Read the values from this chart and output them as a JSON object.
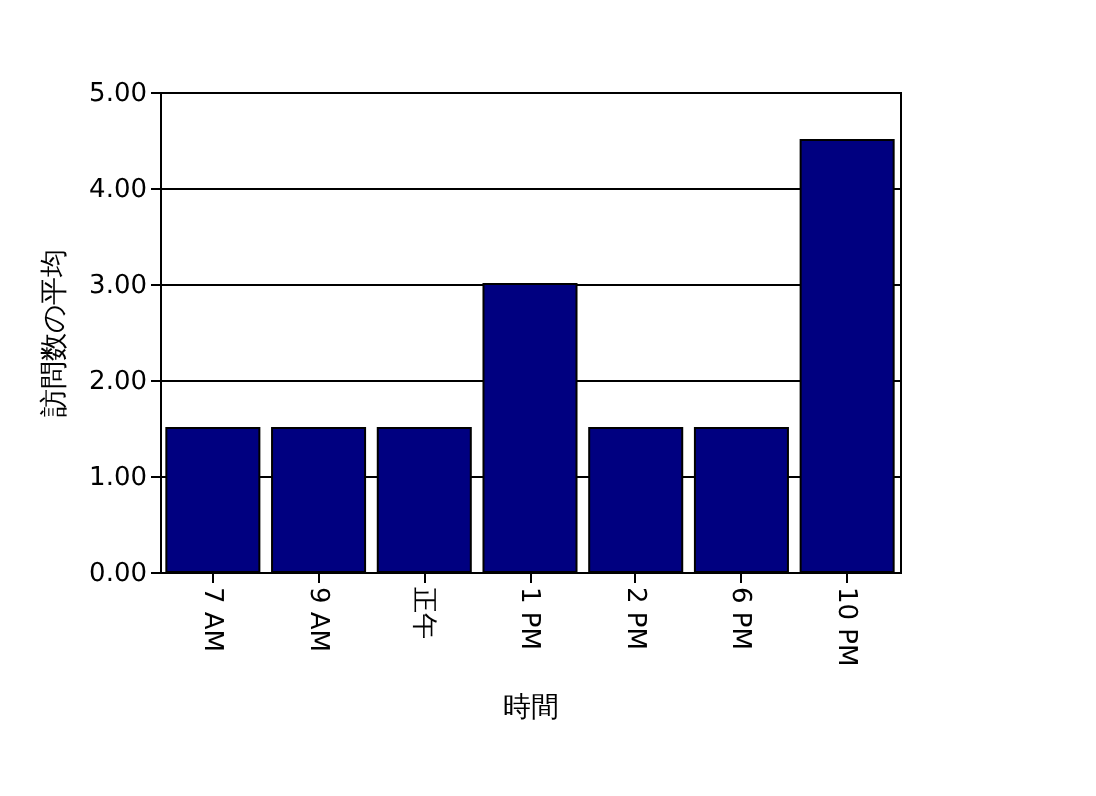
{
  "chart_data": {
    "type": "bar",
    "xlabel": "時間",
    "ylabel": "訪問数の平均",
    "categories": [
      "7 AM",
      "9 AM",
      "正午",
      "1 PM",
      "2 PM",
      "6 PM",
      "10 PM"
    ],
    "values": [
      1.5,
      1.5,
      1.5,
      3,
      1.5,
      1.5,
      4.5
    ],
    "color": "#000080",
    "ylim": [
      0,
      5
    ],
    "yticks": [
      {
        "value": 0,
        "label": "0.00"
      },
      {
        "value": 1,
        "label": "1.00"
      },
      {
        "value": 2,
        "label": "2.00"
      },
      {
        "value": 3,
        "label": "3.00"
      },
      {
        "value": 4,
        "label": "4.00"
      },
      {
        "value": 5,
        "label": "5.00"
      }
    ],
    "grid": "y"
  }
}
